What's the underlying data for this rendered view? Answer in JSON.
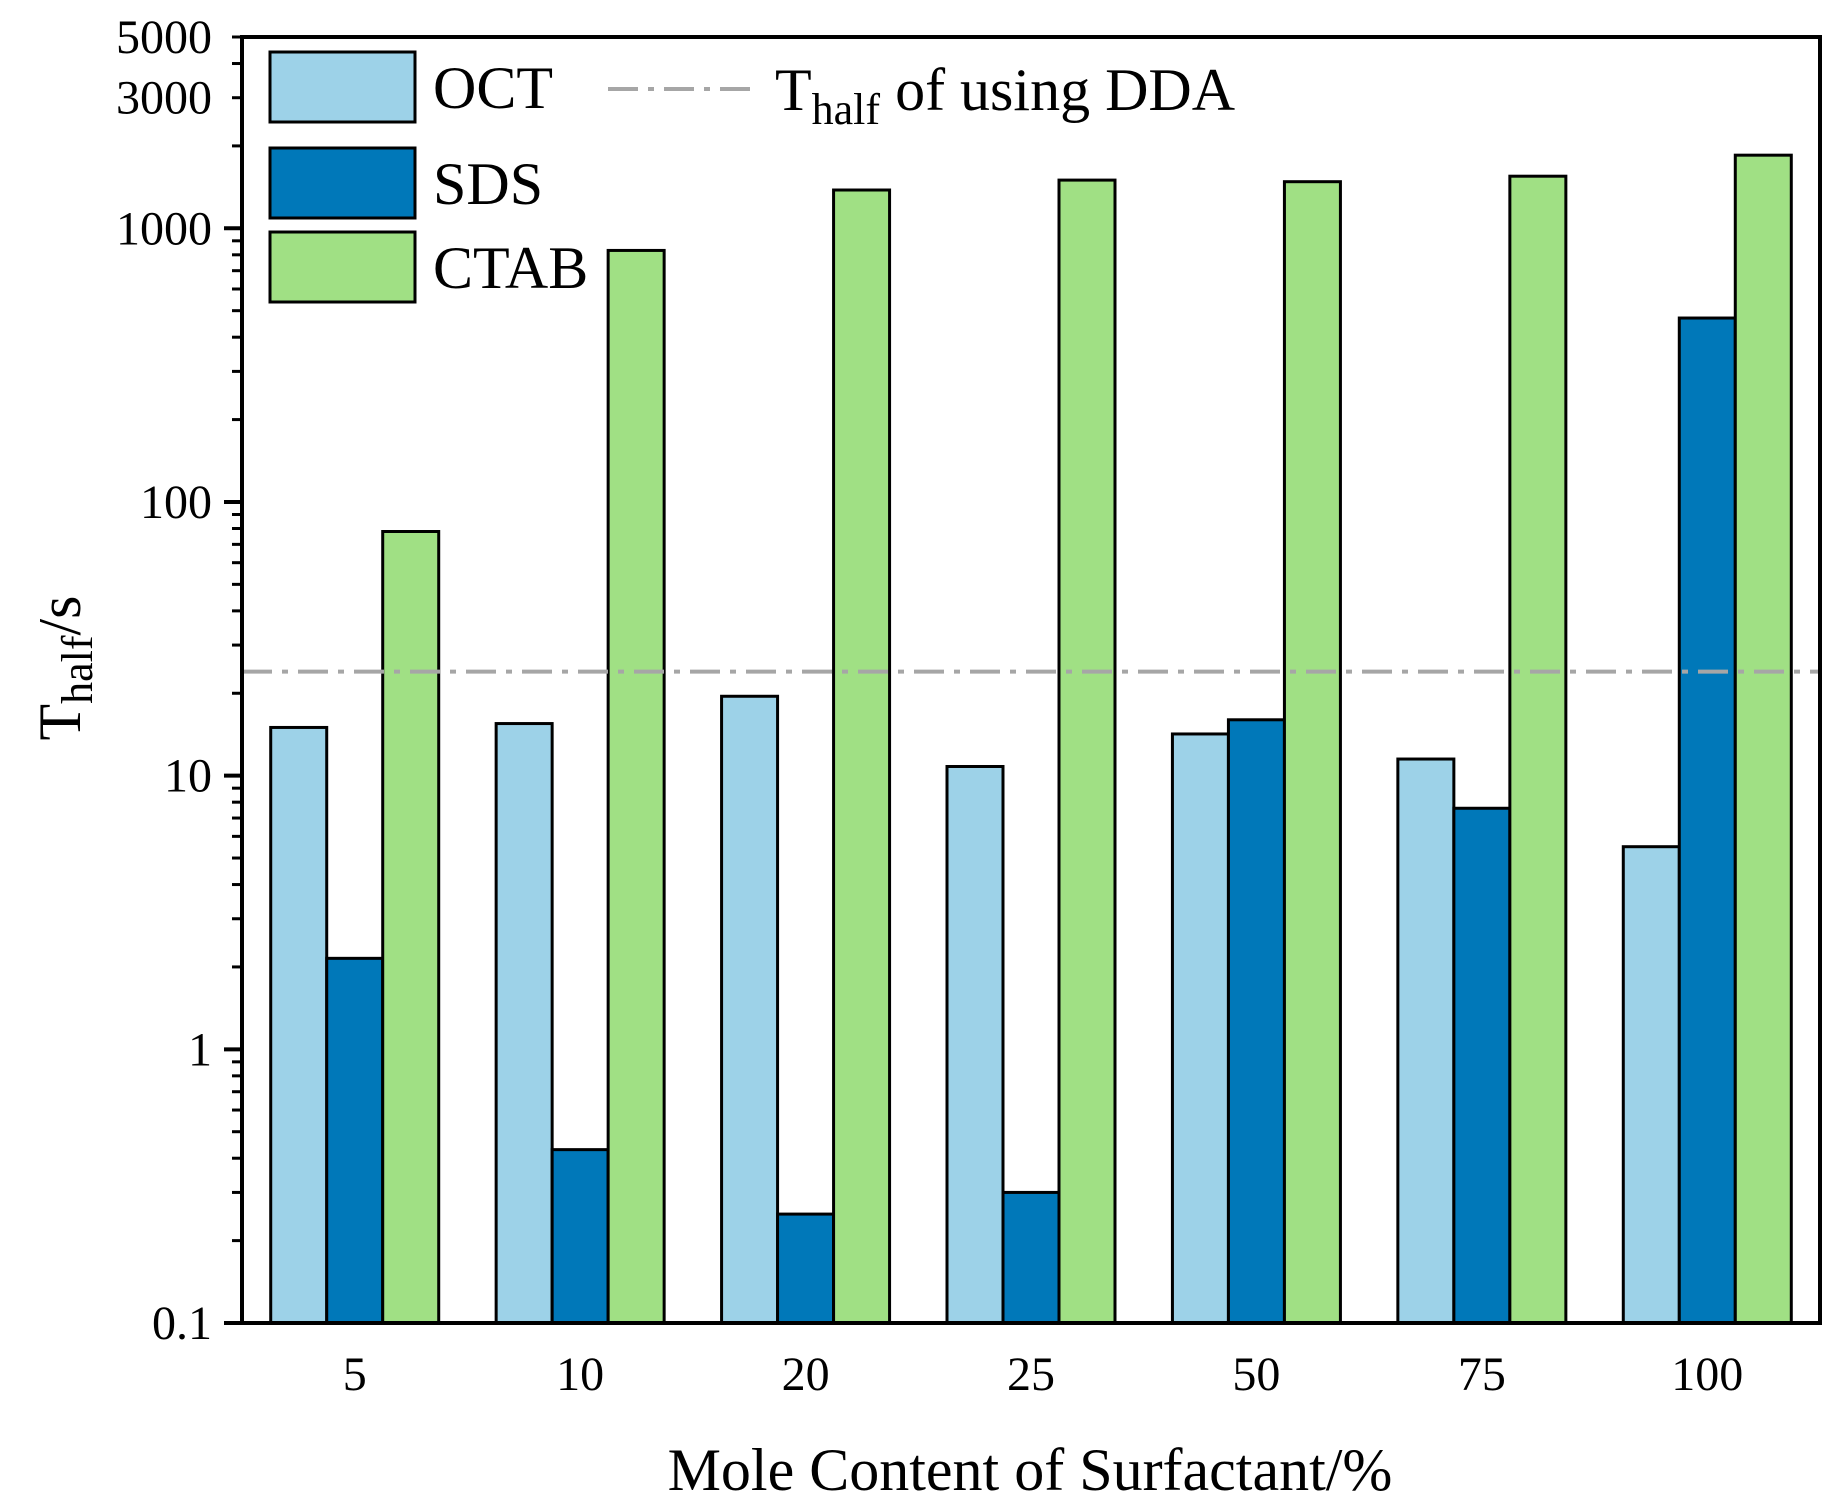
{
  "chart_data": {
    "type": "bar",
    "title": "",
    "xlabel": "Mole Content of Surfactant/%",
    "ylabel": {
      "base": "T",
      "sub": "half",
      "suffix": "/s"
    },
    "yscale": "log",
    "ylim": [
      0.1,
      5000
    ],
    "yticks": [
      0.1,
      1,
      10,
      100,
      1000,
      3000,
      5000
    ],
    "ytick_labels": [
      "0.1",
      "1",
      "10",
      "100",
      "1000",
      "3000",
      "5000"
    ],
    "categories": [
      "5",
      "10",
      "20",
      "25",
      "50",
      "75",
      "100"
    ],
    "series": [
      {
        "name": "OCT",
        "color": "#9dd2e8",
        "values": [
          15,
          15.5,
          19.5,
          10.8,
          14.2,
          11.5,
          5.5
        ]
      },
      {
        "name": "SDS",
        "color": "#0078b9",
        "values": [
          2.15,
          0.43,
          0.25,
          0.3,
          16,
          7.6,
          470
        ]
      },
      {
        "name": "CTAB",
        "color": "#a0e084",
        "values": [
          78,
          830,
          1380,
          1500,
          1480,
          1550,
          1850
        ]
      }
    ],
    "reference_line": {
      "label": {
        "base": "T",
        "sub": "half",
        "suffix": " of using DDA"
      },
      "value": 24,
      "color": "#a6a6a6",
      "style": "dash-dot"
    },
    "legend_position": "top-left",
    "grid": false
  }
}
